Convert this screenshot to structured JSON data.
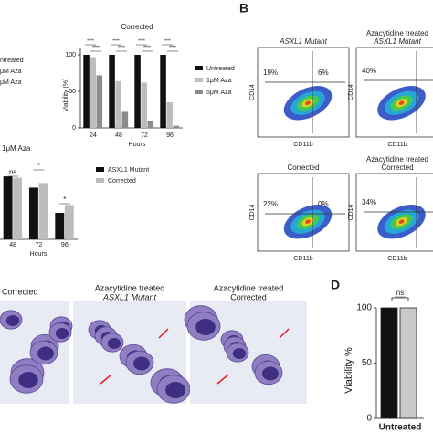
{
  "chart_data": [
    {
      "type": "bar",
      "title": "Corrected",
      "y_label": "Viability (%)",
      "x_label": "Hours",
      "categories": [
        "24",
        "48",
        "72",
        "96"
      ],
      "series": [
        {
          "name": "Untreated",
          "color": "#111111",
          "values": [
            100,
            100,
            100,
            100
          ]
        },
        {
          "name": "1μM Aza",
          "color": "#bdbdbd",
          "values": [
            97,
            64,
            62,
            35
          ]
        },
        {
          "name": "5μM Aza",
          "color": "#8c8c8c",
          "values": [
            72,
            22,
            10,
            3
          ]
        }
      ],
      "ylim": [
        0,
        110
      ],
      "yticks": [
        0,
        50,
        100
      ],
      "annotations": [
        "****",
        "****",
        "****",
        "****",
        "****",
        "****",
        "****",
        "****"
      ]
    },
    {
      "type": "bar",
      "title": "1μM Aza",
      "x_label": "Hours",
      "categories": [
        "48",
        "72",
        "96"
      ],
      "series": [
        {
          "name": "ASXL1 Mutant",
          "color": "#111111",
          "values": [
            95,
            78,
            40
          ]
        },
        {
          "name": "Corrected",
          "color": "#bdbdbd",
          "values": [
            93,
            85,
            52
          ]
        }
      ],
      "ylim": [
        0,
        120
      ],
      "annotations": [
        "ns",
        "*",
        "*"
      ]
    },
    {
      "type": "bar",
      "label": "D",
      "y_label": "Viability %",
      "categories": [
        "Untreated"
      ],
      "series": [
        {
          "color": "#111111",
          "values": [
            100
          ]
        },
        {
          "color": "#c8c8c8",
          "values": [
            100
          ]
        }
      ],
      "ylim": [
        0,
        100
      ],
      "yticks": [
        0,
        50,
        100
      ],
      "annotations": [
        "ns"
      ]
    }
  ],
  "cropped_legend": [
    "ntreated",
    "μM Aza",
    "μM Aza"
  ],
  "panel_b": {
    "label": "B",
    "plots": [
      {
        "title": [
          "ASXL1 Mutant"
        ],
        "x_label": "CD11b",
        "y_label": "CD14",
        "gates": [
          "19%",
          "6%"
        ]
      },
      {
        "title": [
          "Azacytidine treated",
          "ASXL1 Mutant"
        ],
        "x_label": "CD11b",
        "y_label": "CD14",
        "gates": [
          "40%"
        ]
      },
      {
        "title": [
          "Corrected"
        ],
        "x_label": "CD11b",
        "y_label": "CD14",
        "gates": [
          "22%",
          "0%"
        ]
      },
      {
        "title": [
          "Azacytidine treated",
          "Corrected"
        ],
        "x_label": "CD11b",
        "y_label": "CD14",
        "gates": [
          "34%"
        ]
      }
    ]
  },
  "panel_c": {
    "images": [
      {
        "title": [
          "Corrected"
        ]
      },
      {
        "title": [
          "Azacytidine treated",
          "ASXL1 Mutant"
        ]
      },
      {
        "title": [
          "Azacytidine treated",
          "Corrected"
        ]
      }
    ]
  }
}
